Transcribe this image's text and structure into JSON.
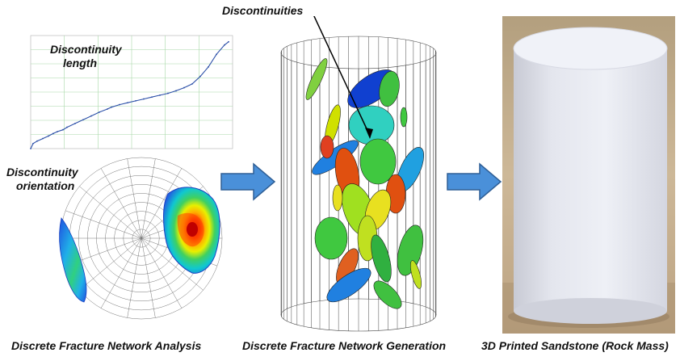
{
  "panels": {
    "analysis": {
      "caption": "Discrete Fracture Network Analysis",
      "length_label_line1": "Discontinuity",
      "length_label_line2": "length",
      "orientation_label_line1": "Discontinuity",
      "orientation_label_line2": "orientation"
    },
    "generation": {
      "caption": "Discrete Fracture Network Generation",
      "label": "Discontinuities"
    },
    "printed": {
      "caption": "3D Printed Sandstone (Rock Mass)"
    }
  },
  "colors": {
    "arrow_fill": "#4a90d9",
    "arrow_stroke": "#2f5f96",
    "line_chart": "#2b4fa8",
    "grid": "#a8d8a8",
    "background_photo": "#c9b596",
    "cylinder": "#e4e6ee"
  },
  "chart_data": {
    "type": "line",
    "title": "",
    "xlabel": "",
    "ylabel": "",
    "x": [
      0,
      3,
      8,
      15,
      22,
      28,
      33,
      40,
      45,
      55,
      65,
      75,
      85,
      95,
      100,
      110,
      120,
      130,
      140,
      150,
      160,
      170,
      180,
      190,
      200,
      210,
      220,
      230,
      240,
      245
    ],
    "y": [
      0,
      8,
      12,
      16,
      20,
      24,
      27,
      30,
      34,
      40,
      46,
      52,
      58,
      63,
      66,
      70,
      73,
      76,
      79,
      82,
      85,
      88,
      92,
      97,
      103,
      115,
      130,
      150,
      165,
      170
    ]
  }
}
